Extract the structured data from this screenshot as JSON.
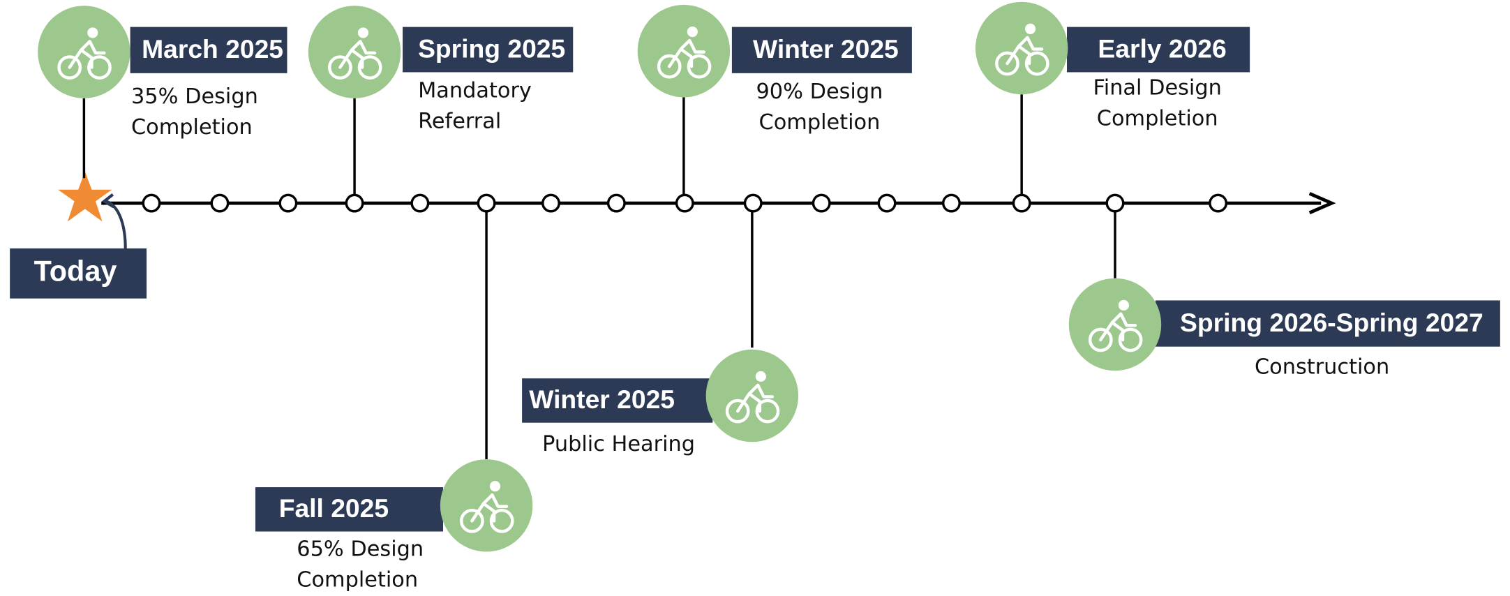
{
  "today": "Today",
  "milestones": [
    {
      "date": "March 2025",
      "description": [
        "35% Design",
        "Completion"
      ]
    },
    {
      "date": "Spring 2025",
      "description": [
        "Mandatory",
        "Referral"
      ]
    },
    {
      "date": "Winter 2025",
      "description": [
        "90% Design",
        "Completion"
      ]
    },
    {
      "date": "Early 2026",
      "description": [
        "Final Design",
        "Completion"
      ]
    },
    {
      "date": "Fall 2025",
      "description": [
        "65% Design",
        "Completion"
      ]
    },
    {
      "date": "Winter 2025",
      "description": [
        "Public Hearing"
      ]
    },
    {
      "date": "Spring 2026-Spring 2027",
      "description": [
        "Construction"
      ]
    }
  ]
}
